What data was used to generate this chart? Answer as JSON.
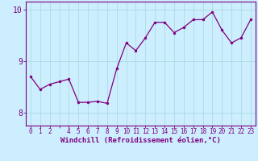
{
  "x": [
    0,
    1,
    2,
    3,
    4,
    5,
    6,
    7,
    8,
    9,
    10,
    11,
    12,
    13,
    14,
    15,
    16,
    17,
    18,
    19,
    20,
    21,
    22,
    23
  ],
  "y": [
    8.7,
    8.45,
    8.55,
    8.6,
    8.65,
    8.2,
    8.2,
    8.22,
    8.18,
    8.85,
    9.35,
    9.2,
    9.45,
    9.75,
    9.75,
    9.55,
    9.65,
    9.8,
    9.8,
    9.95,
    9.6,
    9.35,
    9.45,
    9.8
  ],
  "line_color": "#800080",
  "marker_color": "#800080",
  "bg_color": "#cceeff",
  "grid_color": "#aadddd",
  "xlabel": "Windchill (Refroidissement éolien,°C)",
  "ylim": [
    7.75,
    10.15
  ],
  "xlim": [
    -0.5,
    23.5
  ],
  "yticks": [
    8,
    9,
    10
  ],
  "xtick_labels": [
    "0",
    "1",
    "2",
    "",
    "4",
    "5",
    "6",
    "7",
    "8",
    "9",
    "10",
    "11",
    "12",
    "13",
    "14",
    "15",
    "16",
    "17",
    "18",
    "19",
    "20",
    "21",
    "22",
    "23"
  ],
  "font_color": "#800080",
  "tick_fontsize": 5.5,
  "xlabel_fontsize": 6.5,
  "ytick_fontsize": 7
}
